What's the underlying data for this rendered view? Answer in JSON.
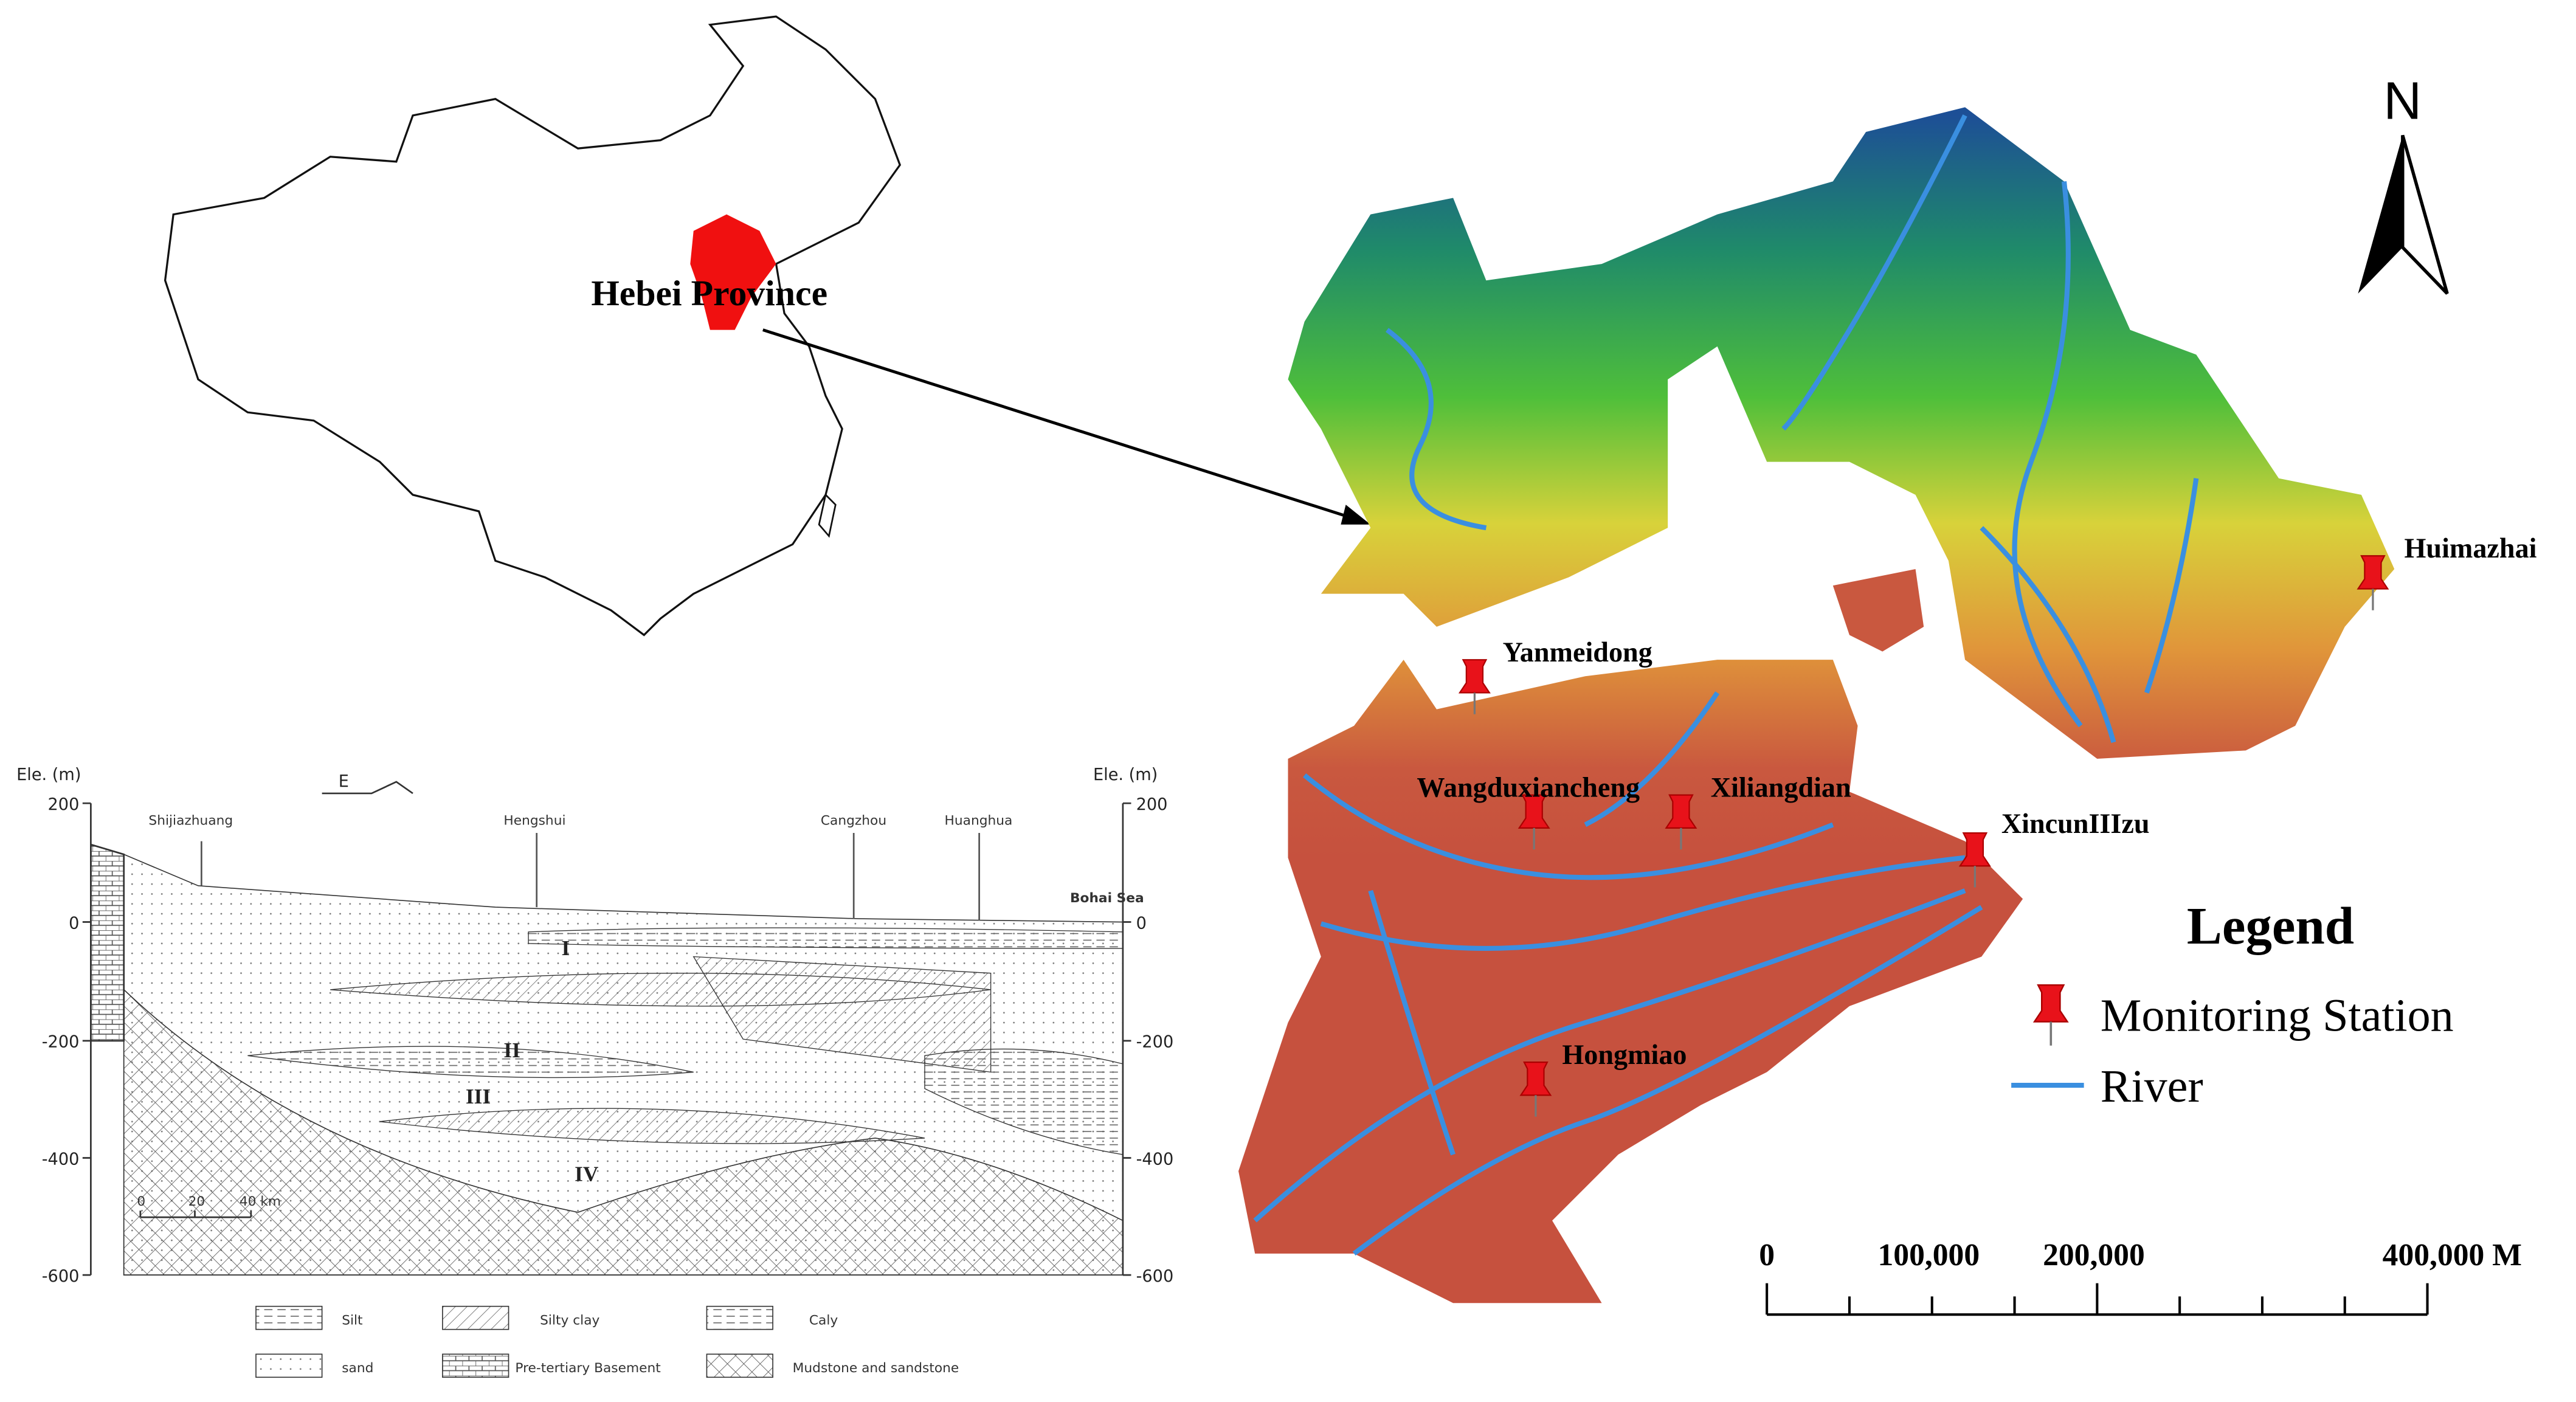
{
  "inset_map": {
    "label": "Hebei Province"
  },
  "map": {
    "north": "N",
    "stations": [
      "Yanmeidong",
      "Wangduxiancheng",
      "Xiliangdian",
      "XincunIIIzu",
      "Huimazhai",
      "Hongmiao"
    ],
    "legend": {
      "title": "Legend",
      "items": [
        "Monitoring Station",
        "River"
      ]
    },
    "scale_bar": [
      "0",
      "100,000",
      "200,000",
      "400,000 M"
    ]
  },
  "cross_section": {
    "left_axis_title": "Ele. (m)",
    "right_axis_title": "Ele. (m)",
    "direction": "E",
    "left_ticks": [
      "200",
      "0",
      "-200",
      "-400",
      "-600"
    ],
    "right_ticks": [
      "200",
      "0",
      "-200",
      "-400",
      "-600"
    ],
    "places": [
      "Shijiazhuang",
      "Hengshui",
      "Cangzhou",
      "Huanghua"
    ],
    "sea": "Bohai Sea",
    "units": [
      "I",
      "II",
      "III",
      "IV"
    ],
    "scale": [
      "0",
      "20",
      "40 km"
    ],
    "legend": [
      "Silt",
      "Silty clay",
      "Caly",
      "sand",
      "Pre-tertiary Basement",
      "Mudstone and sandstone"
    ]
  }
}
